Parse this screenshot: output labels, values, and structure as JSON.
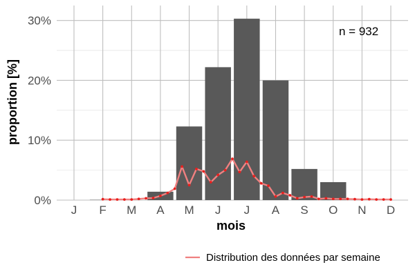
{
  "chart_data": {
    "type": "bar",
    "xlabel": "mois",
    "ylabel": "proportion [%]",
    "ylim": [
      0,
      32.5
    ],
    "y_ticks": [
      0,
      10,
      20,
      30
    ],
    "y_tick_labels": [
      "0%",
      "10%",
      "20%",
      "30%"
    ],
    "categories": [
      "J",
      "F",
      "M",
      "A",
      "M",
      "J",
      "J",
      "A",
      "S",
      "O",
      "N",
      "D"
    ],
    "values": [
      0,
      0.05,
      0,
      1.4,
      12.3,
      22.2,
      30.3,
      20.0,
      5.2,
      3.0,
      0,
      0
    ],
    "annotation": "n = 932",
    "grid": true,
    "legend_position": "bottom-right",
    "colors": {
      "bars": "#595959",
      "line": "#f08080",
      "points": "#e8201e",
      "grid": "#bebebe"
    },
    "weekly_series": {
      "name": "Distribution des données par semaine",
      "x_months": [
        2.0,
        2.25,
        2.5,
        2.75,
        3.0,
        3.25,
        3.5,
        3.75,
        4.0,
        4.25,
        4.5,
        4.75,
        5.0,
        5.25,
        5.5,
        5.75,
        6.0,
        6.25,
        6.5,
        6.75,
        7.0,
        7.25,
        7.5,
        7.75,
        8.0,
        8.25,
        8.5,
        8.75,
        9.0,
        9.25,
        9.5,
        9.75,
        10.0,
        10.25,
        10.5,
        10.75,
        11.0,
        11.25,
        11.5,
        11.75,
        12.0
      ],
      "values": [
        0.15,
        0.1,
        0.1,
        0.1,
        0.1,
        0.2,
        0.3,
        0.35,
        0.7,
        1.2,
        1.9,
        5.6,
        2.5,
        5.2,
        4.8,
        3.0,
        4.2,
        5.0,
        6.9,
        4.7,
        6.4,
        4.0,
        2.8,
        2.4,
        0.6,
        1.2,
        0.8,
        0.3,
        0.5,
        0.6,
        0.2,
        0.3,
        0.2,
        0.2,
        0.2,
        0.15,
        0.1,
        0.15,
        0.1,
        0.1,
        0.1
      ]
    }
  }
}
